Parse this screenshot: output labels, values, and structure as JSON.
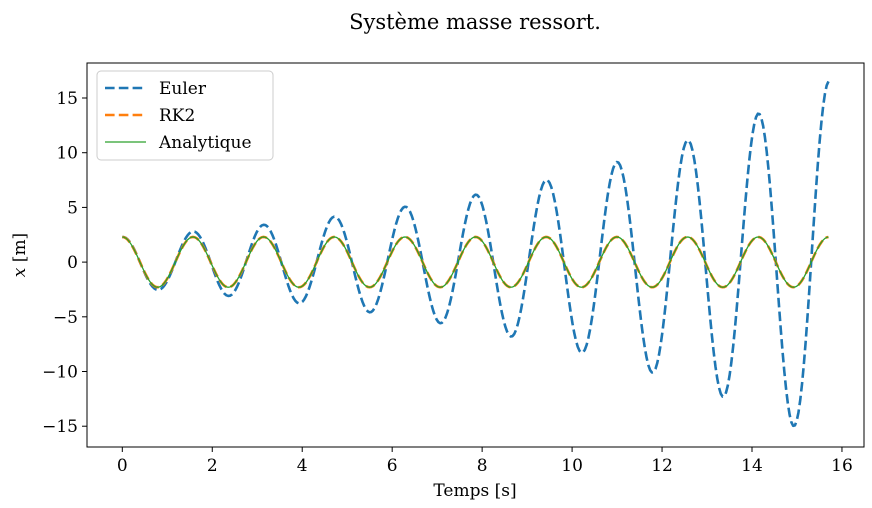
{
  "chart_data": {
    "type": "line",
    "title": "Système masse ressort.",
    "xlabel": "Temps [s]",
    "ylabel_var": "x",
    "ylabel_unit": " [m]",
    "xlim": [
      -0.785,
      16.49
    ],
    "ylim": [
      -16.9,
      18.2
    ],
    "xticks": [
      0,
      2,
      4,
      6,
      8,
      10,
      12,
      14,
      16
    ],
    "yticks": [
      -15,
      -10,
      -5,
      0,
      5,
      10,
      15
    ],
    "ytick_labels": [
      "−15",
      "−10",
      "−5",
      "0",
      "5",
      "10",
      "15"
    ],
    "grid": false,
    "legend_position": "top-left",
    "model": {
      "t_start": 0,
      "t_end": 15.7,
      "omega": 4,
      "amplitude": 2.3,
      "euler_growth_per_s": 0.1256,
      "samples": 400
    },
    "series": [
      {
        "name": "Euler",
        "color": "#1f77b4",
        "style": "dashed",
        "kind": "euler",
        "x_range": [
          0,
          15.7
        ],
        "y_range_approx": [
          -15.2,
          16.5
        ]
      },
      {
        "name": "RK2",
        "color": "#ff7f0e",
        "style": "dashed",
        "kind": "exact",
        "x_range": [
          0,
          15.7
        ],
        "y_range_approx": [
          -2.3,
          2.3
        ]
      },
      {
        "name": "Analytique",
        "color": "#2ca02c",
        "style": "solid",
        "kind": "exact",
        "x_range": [
          0,
          15.7
        ],
        "y_range_approx": [
          -2.3,
          2.3
        ]
      }
    ]
  }
}
